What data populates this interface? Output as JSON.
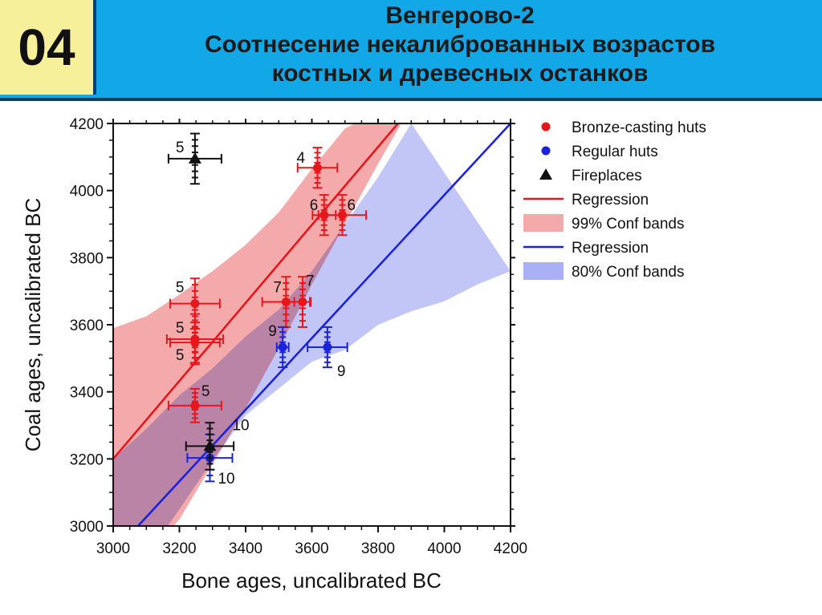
{
  "header": {
    "number": "04",
    "title_line1": "Венгерово-2",
    "title_line2": "Соотнесение некалиброванных возрастов",
    "title_line3": "костных и древесных останков"
  },
  "colors": {
    "header_bg": "#12a7e6",
    "badge_bg": "#f7f09a",
    "red": "#e8151b",
    "blue": "#1a22e0",
    "black": "#111111",
    "band_red": "#f4aaab",
    "band_blue": "#aab0f4",
    "band_overlap": "#a983c8"
  },
  "chart_data": {
    "type": "scatter",
    "xlabel": "Bone ages, uncalibrated BC",
    "ylabel": "Coal ages, uncalibrated BC",
    "xlim": [
      3000,
      4200
    ],
    "ylim": [
      3000,
      4200
    ],
    "xticks": [
      3000,
      3200,
      3400,
      3600,
      3800,
      4000,
      4200
    ],
    "yticks": [
      3000,
      3200,
      3400,
      3600,
      3800,
      4000,
      4200
    ],
    "grid": false,
    "legend_position": "right",
    "legend": [
      {
        "label": "Bronze-casting huts",
        "kind": "marker-circle",
        "color": "#e8151b"
      },
      {
        "label": "Regular huts",
        "kind": "marker-circle",
        "color": "#1a22e0"
      },
      {
        "label": "Fireplaces",
        "kind": "marker-triangle",
        "color": "#111111"
      },
      {
        "label": "Regression",
        "kind": "line",
        "color": "#e8151b"
      },
      {
        "label": "99% Conf bands",
        "kind": "band",
        "color": "#f4aaab"
      },
      {
        "label": "Regression",
        "kind": "line",
        "color": "#1a22e0"
      },
      {
        "label": "80% Conf bands",
        "kind": "band",
        "color": "#aab0f4"
      }
    ],
    "series": [
      {
        "name": "Bronze-casting huts",
        "marker": "circle",
        "color": "#e8151b",
        "points": [
          {
            "x": 3617,
            "y": 4068,
            "xerr": 60,
            "yerr": 60,
            "label": "4",
            "ldx": -26,
            "ldy": -6
          },
          {
            "x": 3637,
            "y": 3927,
            "xerr": 35,
            "yerr": 60,
            "label": "6",
            "ldx": -18,
            "ldy": -6
          },
          {
            "x": 3692,
            "y": 3927,
            "xerr": 72,
            "yerr": 60,
            "label": "6",
            "ldx": 6,
            "ldy": -6
          },
          {
            "x": 3522,
            "y": 3668,
            "xerr": 72,
            "yerr": 75,
            "label": "7",
            "ldx": -16,
            "ldy": -12
          },
          {
            "x": 3572,
            "y": 3668,
            "xerr": 25,
            "yerr": 75,
            "label": "7",
            "ldx": 4,
            "ldy": -20
          },
          {
            "x": 3247,
            "y": 3663,
            "xerr": 75,
            "yerr": 75,
            "label": "5",
            "ldx": -24,
            "ldy": -14
          },
          {
            "x": 3247,
            "y": 3557,
            "xerr": 85,
            "yerr": 75,
            "label": "5",
            "ldx": -24,
            "ldy": -8
          },
          {
            "x": 3247,
            "y": 3547,
            "xerr": 75,
            "yerr": 60,
            "label": "5",
            "ldx": -24,
            "ldy": 22
          },
          {
            "x": 3247,
            "y": 3359,
            "xerr": 80,
            "yerr": 50,
            "label": "5",
            "ldx": 8,
            "ldy": -12
          }
        ]
      },
      {
        "name": "Regular huts",
        "marker": "circle",
        "color": "#1a22e0",
        "points": [
          {
            "x": 3512,
            "y": 3533,
            "xerr": 18,
            "yerr": 60,
            "label": "9",
            "ldx": -18,
            "ldy": -14
          },
          {
            "x": 3647,
            "y": 3533,
            "xerr": 60,
            "yerr": 60,
            "label": "9",
            "ldx": 12,
            "ldy": 36
          },
          {
            "x": 3292,
            "y": 3203,
            "xerr": 68,
            "yerr": 70,
            "label": "10",
            "ldx": 10,
            "ldy": 32
          }
        ]
      },
      {
        "name": "Fireplaces",
        "marker": "triangle",
        "color": "#111111",
        "points": [
          {
            "x": 3247,
            "y": 4095,
            "xerr": 80,
            "yerr": 75,
            "label": "5",
            "ldx": -24,
            "ldy": -8
          },
          {
            "x": 3292,
            "y": 3238,
            "xerr": 72,
            "yerr": 70,
            "label": "10",
            "ldx": 28,
            "ldy": -20
          }
        ]
      }
    ],
    "regressions": [
      {
        "color": "#e8151b",
        "from": [
          3000,
          3200
        ],
        "to": [
          3860,
          4200
        ]
      },
      {
        "color": "#1a22e0",
        "from": [
          3075,
          3000
        ],
        "to": [
          4200,
          4200
        ]
      }
    ],
    "bands": [
      {
        "name": "99% Conf bands",
        "color": "#f4aaab",
        "upper": [
          [
            3000,
            3590
          ],
          [
            3100,
            3625
          ],
          [
            3200,
            3690
          ],
          [
            3300,
            3760
          ],
          [
            3400,
            3838
          ],
          [
            3500,
            3935
          ],
          [
            3600,
            4065
          ],
          [
            3700,
            4185
          ],
          [
            3730,
            4200
          ]
        ],
        "lower": [
          [
            3000,
            2800
          ],
          [
            3200,
            3020
          ],
          [
            3300,
            3185
          ],
          [
            3400,
            3350
          ],
          [
            3500,
            3530
          ],
          [
            3600,
            3720
          ],
          [
            3700,
            3900
          ],
          [
            3800,
            4080
          ],
          [
            3870,
            4200
          ]
        ]
      },
      {
        "name": "80% Conf bands",
        "color": "#aab0f4",
        "upper": [
          [
            3000,
            3200
          ],
          [
            3100,
            3290
          ],
          [
            3200,
            3390
          ],
          [
            3300,
            3470
          ],
          [
            3400,
            3565
          ],
          [
            3500,
            3645
          ],
          [
            3600,
            3760
          ],
          [
            3700,
            3900
          ],
          [
            3800,
            4040
          ],
          [
            3900,
            4200
          ]
        ],
        "lower": [
          [
            3000,
            2800
          ],
          [
            3100,
            2910
          ],
          [
            3200,
            3050
          ],
          [
            3300,
            3195
          ],
          [
            3400,
            3330
          ],
          [
            3500,
            3410
          ],
          [
            3600,
            3490
          ],
          [
            3700,
            3525
          ],
          [
            3800,
            3600
          ],
          [
            3900,
            3640
          ],
          [
            4000,
            3670
          ],
          [
            4100,
            3720
          ],
          [
            4200,
            3760
          ]
        ]
      }
    ]
  }
}
